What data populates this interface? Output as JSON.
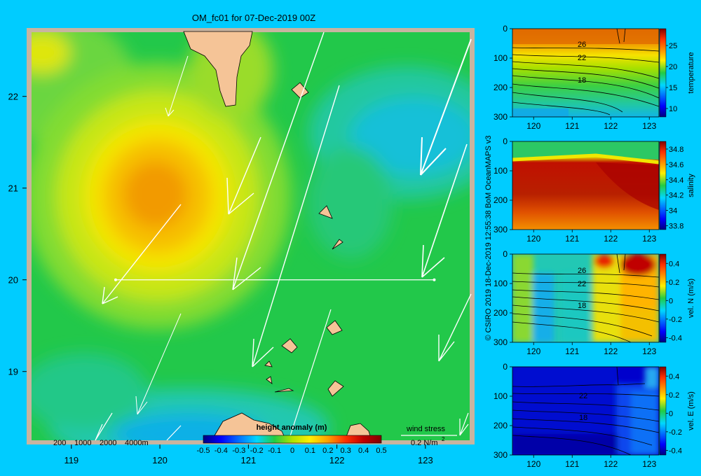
{
  "colors": {
    "background": "#00ccff",
    "land": "#f5c497",
    "vectors": "#ffffff",
    "frame": "#c8b4a0"
  },
  "main_map": {
    "title": "OM_fc01 for 07-Dec-2019 00Z",
    "x_ticks": [
      "119",
      "120",
      "121",
      "122",
      "123"
    ],
    "y_ticks": [
      "22",
      "21",
      "20",
      "19"
    ],
    "x_range": [
      118.55,
      123.5
    ],
    "y_range": [
      18.25,
      22.7
    ],
    "bathymetry_legend": [
      "200",
      "1000",
      "2000",
      "4000m"
    ],
    "wind_stress_label": "wind stress",
    "wind_stress_scale": "0.2 N/m",
    "wind_stress_exponent": "2",
    "section_line": {
      "x": [
        119.5,
        123.1
      ],
      "y": 20.0
    },
    "sla_max": {
      "lon": 120.0,
      "lat": 21.0,
      "value": 0.28
    },
    "sla_min": {
      "lon": 122.6,
      "lat": 21.5,
      "value": -0.05
    }
  },
  "colorbar": {
    "label": "height anomaly (m)",
    "ticks": [
      "-0.5",
      "-0.4",
      "-0.3",
      "-0.2",
      "-0.1",
      "0",
      "0.1",
      "0.2",
      "0.3",
      "0.4",
      "0.5"
    ],
    "range": [
      -0.5,
      0.5
    ]
  },
  "section_panels": [
    {
      "name": "temperature-panel",
      "variable": "temperature",
      "cbar_ticks": [
        "25",
        "20",
        "15",
        "10"
      ],
      "cbar_range": [
        8,
        29
      ],
      "contour_labels": [
        "26",
        "22",
        "18"
      ]
    },
    {
      "name": "salinity-panel",
      "variable": "salinity",
      "cbar_ticks": [
        "34.8",
        "34.6",
        "34.4",
        "34.2",
        "34",
        "33.8"
      ],
      "cbar_range": [
        33.75,
        34.9
      ],
      "contour_labels": []
    },
    {
      "name": "vel-n-panel",
      "variable": "vel. N (m/s)",
      "cbar_ticks": [
        "0.4",
        "0.2",
        "0",
        "-0.2",
        "-0.4"
      ],
      "cbar_range": [
        -0.45,
        0.5
      ],
      "contour_labels": [
        "26",
        "22",
        "18"
      ]
    },
    {
      "name": "vel-e-panel",
      "variable": "vel. E (m/s)",
      "cbar_ticks": [
        "0.4",
        "0.2",
        "0",
        "-0.2",
        "-0.4"
      ],
      "cbar_range": [
        -0.45,
        0.5
      ],
      "contour_labels": [
        "22",
        "18"
      ]
    }
  ],
  "section_axes": {
    "x_ticks": [
      "120",
      "121",
      "122",
      "123"
    ],
    "y_ticks": [
      "0",
      "100",
      "200",
      "300"
    ],
    "x_range": [
      119.45,
      123.25
    ],
    "y_range": [
      0,
      300
    ]
  },
  "credit": "© CSIRO 2019  18-Dec-2019 12:55:38 BoM OceanMAPS v3",
  "chart_data": [
    {
      "type": "heatmap",
      "title": "OM_fc01 for 07-Dec-2019 00Z",
      "xlabel": "",
      "ylabel": "",
      "xlim": [
        118.55,
        123.5
      ],
      "ylim": [
        18.25,
        22.7
      ],
      "colorbar_label": "height anomaly (m)",
      "clim": [
        -0.5,
        0.5
      ],
      "features": [
        {
          "feature": "maximum",
          "lon": 120.0,
          "lat": 21.0,
          "value": 0.28
        },
        {
          "feature": "minimum",
          "lon": 122.6,
          "lat": 21.5,
          "value": -0.05
        }
      ]
    },
    {
      "type": "heatmap",
      "variable": "temperature",
      "xlim": [
        119.45,
        123.25
      ],
      "ylim": [
        300,
        0
      ],
      "contour_labels": [
        "26",
        "22",
        "18"
      ]
    },
    {
      "type": "heatmap",
      "variable": "salinity",
      "xlim": [
        119.45,
        123.25
      ],
      "ylim": [
        300,
        0
      ]
    },
    {
      "type": "heatmap",
      "variable": "vel. N (m/s)",
      "xlim": [
        119.45,
        123.25
      ],
      "ylim": [
        300,
        0
      ],
      "contour_labels": [
        "26",
        "22",
        "18"
      ]
    },
    {
      "type": "heatmap",
      "variable": "vel. E (m/s)",
      "xlim": [
        119.45,
        123.25
      ],
      "ylim": [
        300,
        0
      ],
      "contour_labels": [
        "22",
        "18"
      ]
    }
  ]
}
